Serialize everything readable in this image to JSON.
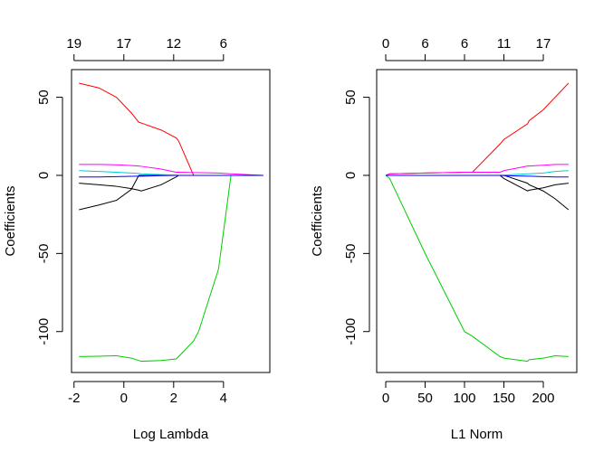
{
  "chart_data": [
    {
      "type": "line",
      "xlabel": "Log Lambda",
      "ylabel": "Coefficients",
      "xlim": [
        -2.1,
        5.86
      ],
      "ylim": [
        -126.2,
        67.7
      ],
      "xticks": [
        -2,
        0,
        2,
        4
      ],
      "x2ticks": [
        {
          "value": -2,
          "label": "19"
        },
        {
          "value": 0,
          "label": "17"
        },
        {
          "value": 2,
          "label": "12"
        },
        {
          "value": 4,
          "label": "6"
        }
      ],
      "yticks": [
        -100,
        -50,
        0,
        50
      ],
      "x": [
        -1.8,
        -1,
        -0.3,
        0.3,
        0.6,
        0.7,
        1.5,
        2.1,
        2.2,
        2.8,
        3,
        3.8,
        4.3,
        5.6
      ],
      "series": [
        {
          "color": "#ff0000",
          "values": [
            59,
            56,
            50,
            40,
            34,
            33.5,
            29,
            24,
            22,
            0,
            0,
            0,
            0,
            0
          ]
        },
        {
          "color": "#00cd00",
          "values": [
            -116,
            -115.8,
            -115.5,
            -117,
            -118.5,
            -119,
            -118.5,
            -117.5,
            -116,
            -106,
            -100,
            -60,
            0,
            0
          ]
        },
        {
          "color": "#000000",
          "values": [
            -22,
            -19,
            -16,
            -9,
            0,
            0,
            0,
            0,
            0,
            0,
            0,
            0,
            0,
            0
          ]
        },
        {
          "color": "#000000",
          "values": [
            -5,
            -6,
            -7,
            -8.5,
            -9.5,
            -10,
            -6,
            -1,
            0,
            0,
            0,
            0,
            0,
            0
          ]
        },
        {
          "color": "#ff00ff",
          "values": [
            7,
            7,
            6.8,
            6.3,
            6,
            5.8,
            4,
            2,
            2,
            1.8,
            1.7,
            1.5,
            1,
            0
          ]
        },
        {
          "color": "#00cdcd",
          "values": [
            3,
            2.5,
            2,
            1.5,
            1.2,
            1,
            0.5,
            0.1,
            0,
            0,
            0,
            0,
            0,
            0
          ]
        },
        {
          "color": "#0000ff",
          "values": [
            -1,
            -1,
            -0.8,
            -0.6,
            -0.5,
            -0.5,
            -0.2,
            0,
            0,
            0,
            0,
            0,
            0,
            0
          ]
        }
      ]
    },
    {
      "type": "line",
      "xlabel": "L1 Norm",
      "ylabel": "Coefficients",
      "xlim": [
        -11.5,
        242.5
      ],
      "ylim": [
        -126.2,
        67.7
      ],
      "xticks": [
        0,
        50,
        100,
        150,
        200
      ],
      "x2ticks": [
        {
          "value": 0,
          "label": "0"
        },
        {
          "value": 50,
          "label": "6"
        },
        {
          "value": 100,
          "label": "6"
        },
        {
          "value": 150,
          "label": "11"
        },
        {
          "value": 200,
          "label": "17"
        }
      ],
      "yticks": [
        -100,
        -50,
        0,
        50
      ],
      "x": [
        0,
        5,
        50,
        100,
        110,
        145,
        150,
        180,
        182,
        200,
        215,
        232
      ],
      "series": [
        {
          "color": "#ff0000",
          "values": [
            0,
            1,
            1.5,
            2,
            2,
            20,
            23,
            33,
            35,
            42,
            50,
            59
          ]
        },
        {
          "color": "#00cd00",
          "values": [
            0,
            -2,
            -50,
            -100,
            -103,
            -116,
            -117,
            -119,
            -118,
            -117,
            -115.5,
            -116
          ]
        },
        {
          "color": "#000000",
          "values": [
            0,
            0,
            0,
            0,
            0,
            0,
            0,
            -5,
            -6,
            -10,
            -15,
            -22
          ]
        },
        {
          "color": "#000000",
          "values": [
            0,
            0,
            0,
            0,
            0,
            0,
            -2,
            -10,
            -9.5,
            -8,
            -6,
            -5
          ]
        },
        {
          "color": "#ff00ff",
          "values": [
            0,
            1,
            1.5,
            2,
            2,
            2,
            3,
            6,
            6,
            6.5,
            7,
            7
          ]
        },
        {
          "color": "#00cdcd",
          "values": [
            0,
            0,
            0,
            0,
            0,
            0,
            0.2,
            1,
            1,
            1.5,
            2.5,
            3
          ]
        },
        {
          "color": "#0000ff",
          "values": [
            0,
            0,
            0,
            0,
            0,
            0,
            -0.2,
            -0.5,
            -0.5,
            -0.8,
            -1,
            -1
          ]
        }
      ]
    }
  ]
}
